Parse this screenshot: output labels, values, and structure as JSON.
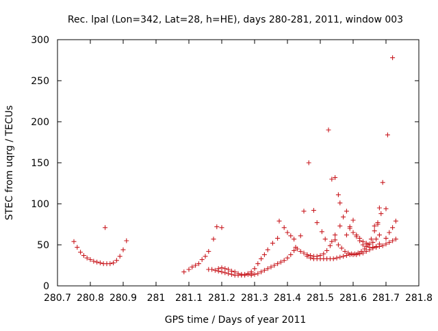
{
  "chart_data": {
    "type": "scatter",
    "title": "Rec. lpal (Lon=342, Lat=28, h=HE), days 280-281, 2011, window 003",
    "xlabel": "GPS time / Days of year 2011",
    "ylabel": "STEC from uqrg / TECUs",
    "xlim": [
      280.7,
      281.8
    ],
    "ylim": [
      0,
      300
    ],
    "xticks": [
      "280.7",
      "280.8",
      "280.9",
      "281",
      "281.1",
      "281.2",
      "281.3",
      "281.4",
      "281.5",
      "281.6",
      "281.7",
      "281.8"
    ],
    "yticks": [
      "0",
      "50",
      "100",
      "150",
      "200",
      "250",
      "300"
    ],
    "marker": "+",
    "color": "#c8181e",
    "grid": false,
    "legend": "none",
    "series": [
      {
        "points": [
          [
            280.75,
            54
          ],
          [
            280.76,
            47
          ],
          [
            280.77,
            41
          ],
          [
            280.78,
            37
          ],
          [
            280.79,
            34
          ],
          [
            280.8,
            32
          ],
          [
            280.81,
            30
          ],
          [
            280.82,
            29
          ],
          [
            280.83,
            28
          ],
          [
            280.84,
            27
          ],
          [
            280.85,
            27
          ],
          [
            280.86,
            27
          ],
          [
            280.87,
            28
          ],
          [
            280.88,
            31
          ],
          [
            280.89,
            36
          ],
          [
            280.9,
            44
          ],
          [
            280.91,
            55
          ],
          [
            280.845,
            71
          ],
          [
            281.085,
            17
          ],
          [
            281.1,
            20
          ],
          [
            281.11,
            23
          ],
          [
            281.12,
            25
          ],
          [
            281.13,
            27
          ],
          [
            281.14,
            32
          ],
          [
            281.15,
            36
          ],
          [
            281.16,
            42
          ],
          [
            281.175,
            57
          ],
          [
            281.185,
            72
          ],
          [
            281.2,
            71
          ],
          [
            281.16,
            20
          ],
          [
            281.17,
            20
          ],
          [
            281.18,
            19
          ],
          [
            281.19,
            18
          ],
          [
            281.2,
            17
          ],
          [
            281.21,
            16
          ],
          [
            281.22,
            15
          ],
          [
            281.23,
            14
          ],
          [
            281.24,
            13
          ],
          [
            281.25,
            13
          ],
          [
            281.26,
            13
          ],
          [
            281.27,
            13
          ],
          [
            281.28,
            14
          ],
          [
            281.29,
            15
          ],
          [
            281.19,
            21
          ],
          [
            281.2,
            22
          ],
          [
            281.21,
            21
          ],
          [
            281.22,
            20
          ],
          [
            281.23,
            18
          ],
          [
            281.24,
            17
          ],
          [
            281.25,
            15
          ],
          [
            281.26,
            14
          ],
          [
            281.27,
            14
          ],
          [
            281.28,
            15
          ],
          [
            281.29,
            17
          ],
          [
            281.3,
            21
          ],
          [
            281.31,
            27
          ],
          [
            281.32,
            33
          ],
          [
            281.33,
            38
          ],
          [
            281.34,
            44
          ],
          [
            281.355,
            52
          ],
          [
            281.37,
            58
          ],
          [
            281.375,
            79
          ],
          [
            281.39,
            71
          ],
          [
            281.4,
            65
          ],
          [
            281.41,
            61
          ],
          [
            281.42,
            57
          ],
          [
            281.29,
            13
          ],
          [
            281.3,
            14
          ],
          [
            281.31,
            15
          ],
          [
            281.32,
            17
          ],
          [
            281.33,
            19
          ],
          [
            281.34,
            21
          ],
          [
            281.35,
            23
          ],
          [
            281.36,
            25
          ],
          [
            281.37,
            27
          ],
          [
            281.38,
            29
          ],
          [
            281.39,
            31
          ],
          [
            281.4,
            34
          ],
          [
            281.41,
            38
          ],
          [
            281.42,
            43
          ],
          [
            281.425,
            47
          ],
          [
            281.44,
            61
          ],
          [
            281.43,
            45
          ],
          [
            281.44,
            42
          ],
          [
            281.45,
            40
          ],
          [
            281.46,
            38
          ],
          [
            281.47,
            37
          ],
          [
            281.48,
            36
          ],
          [
            281.49,
            36
          ],
          [
            281.5,
            37
          ],
          [
            281.51,
            39
          ],
          [
            281.52,
            43
          ],
          [
            281.53,
            49
          ],
          [
            281.535,
            54
          ],
          [
            281.545,
            62
          ],
          [
            281.56,
            73
          ],
          [
            281.57,
            84
          ],
          [
            281.58,
            91
          ],
          [
            281.46,
            36
          ],
          [
            281.47,
            34
          ],
          [
            281.48,
            33
          ],
          [
            281.49,
            33
          ],
          [
            281.5,
            33
          ],
          [
            281.51,
            33
          ],
          [
            281.52,
            33
          ],
          [
            281.53,
            33
          ],
          [
            281.54,
            33
          ],
          [
            281.55,
            34
          ],
          [
            281.56,
            35
          ],
          [
            281.57,
            36
          ],
          [
            281.58,
            37
          ],
          [
            281.59,
            38
          ],
          [
            281.6,
            38
          ],
          [
            281.61,
            38
          ],
          [
            281.62,
            39
          ],
          [
            281.63,
            40
          ],
          [
            281.64,
            42
          ],
          [
            281.65,
            44
          ],
          [
            281.66,
            46
          ],
          [
            281.67,
            47
          ],
          [
            281.68,
            48
          ],
          [
            281.69,
            49
          ],
          [
            281.7,
            51
          ],
          [
            281.71,
            53
          ],
          [
            281.72,
            55
          ],
          [
            281.73,
            57
          ],
          [
            281.545,
            56
          ],
          [
            281.555,
            50
          ],
          [
            281.565,
            46
          ],
          [
            281.575,
            42
          ],
          [
            281.585,
            40
          ],
          [
            281.595,
            39
          ],
          [
            281.605,
            39
          ],
          [
            281.615,
            40
          ],
          [
            281.625,
            42
          ],
          [
            281.635,
            45
          ],
          [
            281.645,
            50
          ],
          [
            281.655,
            57
          ],
          [
            281.665,
            67
          ],
          [
            281.675,
            75
          ],
          [
            281.685,
            88
          ],
          [
            281.7,
            94
          ],
          [
            281.58,
            62
          ],
          [
            281.59,
            72
          ],
          [
            281.6,
            80
          ],
          [
            281.61,
            62
          ],
          [
            281.62,
            58
          ],
          [
            281.63,
            54
          ],
          [
            281.64,
            52
          ],
          [
            281.65,
            51
          ],
          [
            281.66,
            53
          ],
          [
            281.67,
            57
          ],
          [
            281.68,
            62
          ],
          [
            281.59,
            70
          ],
          [
            281.6,
            65
          ],
          [
            281.61,
            60
          ],
          [
            281.62,
            55
          ],
          [
            281.63,
            50
          ],
          [
            281.64,
            48
          ],
          [
            281.65,
            47
          ],
          [
            281.66,
            47
          ],
          [
            281.67,
            48
          ],
          [
            281.68,
            51
          ],
          [
            281.7,
            58
          ],
          [
            281.71,
            65
          ],
          [
            281.72,
            71
          ],
          [
            281.73,
            79
          ],
          [
            281.45,
            91
          ],
          [
            281.465,
            150
          ],
          [
            281.48,
            92
          ],
          [
            281.49,
            77
          ],
          [
            281.505,
            66
          ],
          [
            281.515,
            57
          ],
          [
            281.525,
            190
          ],
          [
            281.535,
            130
          ],
          [
            281.545,
            132
          ],
          [
            281.555,
            111
          ],
          [
            281.56,
            101
          ],
          [
            281.665,
            73
          ],
          [
            281.675,
            77
          ],
          [
            281.68,
            95
          ],
          [
            281.69,
            126
          ],
          [
            281.705,
            184
          ],
          [
            281.72,
            278
          ]
        ]
      }
    ]
  }
}
